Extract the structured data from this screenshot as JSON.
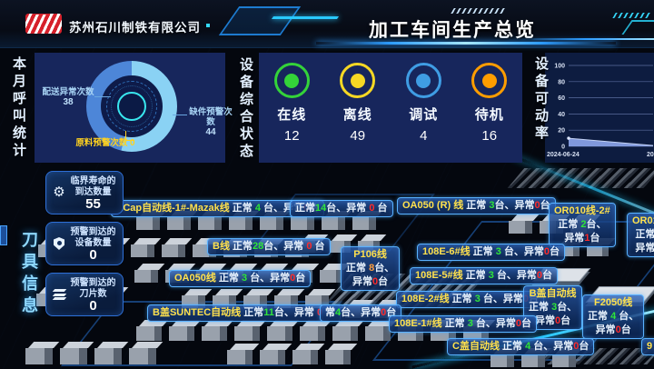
{
  "header": {
    "company": "苏州石川制铁有限公司",
    "title": "加工车间生产总览"
  },
  "left_panel": {
    "side_label": "本月呼叫统计",
    "callouts": [
      {
        "text": "配送异常次数",
        "value": "38"
      },
      {
        "text": "缺件预警次数",
        "value": "44"
      },
      {
        "text": "原料预警次数",
        "value": "0"
      }
    ]
  },
  "status_panel": {
    "side_label": "设备综合状态",
    "items": [
      {
        "label": "在线",
        "value": "12",
        "color": "#34d339"
      },
      {
        "label": "离线",
        "value": "49",
        "color": "#f6d824"
      },
      {
        "label": "调试",
        "value": "4",
        "color": "#3f9de4"
      },
      {
        "label": "待机",
        "value": "16",
        "color": "#ff9d00"
      }
    ]
  },
  "availability": {
    "side_label": "设备可动率"
  },
  "tool_info": {
    "side_label": "刀具信息",
    "cards": [
      {
        "icon": "gears-icon",
        "label_line1": "临界寿命的",
        "label_line2": "到达数量",
        "value": "55"
      },
      {
        "icon": "shield-icon",
        "label_line1": "预警到达的",
        "label_line2": "设备数量",
        "value": "0"
      },
      {
        "icon": "layers-icon",
        "label_line1": "预警到达的",
        "label_line2": "刀片数",
        "value": "0"
      }
    ]
  },
  "chart_data": [
    {
      "type": "pie",
      "title": "本月呼叫统计",
      "labels": [
        "配送异常次数",
        "缺件预警次数",
        "原料预警次数"
      ],
      "values": [
        38,
        44,
        0
      ],
      "colors": [
        "#4d86d8",
        "#8ad2f4",
        "#ffd21f"
      ],
      "legend_position": "callouts"
    },
    {
      "type": "area",
      "title": "设备可动率",
      "x_labels": [
        "2024-06-24",
        "20"
      ],
      "values": [
        10,
        1
      ],
      "ylim": [
        0,
        100
      ],
      "yticks": [
        0,
        20,
        40,
        60,
        80,
        100
      ],
      "grid": true,
      "fill_color": "#8aa3e8",
      "line_color": "#c3d2f5"
    }
  ],
  "floor": {
    "labels": [
      {
        "lines": [
          [
            [
              "XCap自动线-1#-Mazak线",
              "y"
            ],
            [
              " 正常 ",
              "w"
            ],
            [
              "4",
              "g"
            ],
            [
              " 台、异常",
              "w"
            ],
            [
              "0",
              "r"
            ],
            [
              "台",
              "w"
            ]
          ]
        ]
      },
      {
        "lines": [
          [
            [
              "正常",
              "w"
            ],
            [
              "14",
              "g"
            ],
            [
              "台、异常 ",
              "w"
            ],
            [
              "0",
              "r"
            ],
            [
              " 台",
              "w"
            ]
          ]
        ]
      },
      {
        "lines": [
          [
            [
              "OA050 (R) 线",
              "y"
            ],
            [
              " 正常 ",
              "w"
            ],
            [
              "3",
              "g"
            ],
            [
              "台、异常",
              "w"
            ],
            [
              "0",
              "r"
            ],
            [
              "台",
              "w"
            ]
          ]
        ]
      },
      {
        "lines": [
          [
            [
              "OR010线-2#",
              "y"
            ]
          ],
          [
            [
              "正常 ",
              "w"
            ],
            [
              "2",
              "g"
            ],
            [
              "台、",
              "w"
            ]
          ],
          [
            [
              "异常",
              "w"
            ],
            [
              "1",
              "r"
            ],
            [
              "台",
              "w"
            ]
          ]
        ]
      },
      {
        "lines": [
          [
            [
              "OR01",
              "y"
            ]
          ],
          [
            [
              "正常",
              "w"
            ]
          ],
          [
            [
              "异常",
              "w"
            ]
          ]
        ]
      },
      {
        "lines": [
          [
            [
              "B线",
              "y"
            ],
            [
              " 正常",
              "w"
            ],
            [
              "28",
              "g"
            ],
            [
              "台、异常 ",
              "w"
            ],
            [
              "0",
              "r"
            ],
            [
              " 台",
              "w"
            ]
          ]
        ]
      },
      {
        "lines": [
          [
            [
              "P106线",
              "y"
            ]
          ],
          [
            [
              "正常 ",
              "w"
            ],
            [
              "8",
              "o"
            ],
            [
              "台、",
              "w"
            ]
          ],
          [
            [
              "异常",
              "w"
            ],
            [
              "0",
              "r"
            ],
            [
              "台",
              "w"
            ]
          ]
        ]
      },
      {
        "lines": [
          [
            [
              "108E-6#线",
              "y"
            ],
            [
              " 正常 ",
              "w"
            ],
            [
              "3",
              "g"
            ],
            [
              " 台、异常",
              "w"
            ],
            [
              "0",
              "r"
            ],
            [
              "台",
              "w"
            ]
          ]
        ]
      },
      {
        "lines": [
          [
            [
              "108E-5#线",
              "y"
            ],
            [
              " 正常 ",
              "w"
            ],
            [
              "3",
              "g"
            ],
            [
              " 台、异常",
              "w"
            ],
            [
              "0",
              "r"
            ],
            [
              "台",
              "w"
            ]
          ]
        ]
      },
      {
        "lines": [
          [
            [
              "OA050线",
              "y"
            ],
            [
              " 正常 ",
              "w"
            ],
            [
              "3",
              "g"
            ],
            [
              " 台、异常",
              "w"
            ],
            [
              "0",
              "r"
            ],
            [
              "台",
              "w"
            ]
          ]
        ]
      },
      {
        "lines": [
          [
            [
              "108E-2#线",
              "y"
            ],
            [
              " 正常 ",
              "w"
            ],
            [
              "3",
              "g"
            ],
            [
              " 台、异常",
              "w"
            ],
            [
              "0",
              "r"
            ],
            [
              "台",
              "w"
            ]
          ]
        ]
      },
      {
        "lines": [
          [
            [
              "B盖自动线",
              "y"
            ]
          ],
          [
            [
              "正常 ",
              "w"
            ],
            [
              "3",
              "g"
            ],
            [
              "台、",
              "w"
            ]
          ],
          [
            [
              "异常",
              "w"
            ],
            [
              "0",
              "r"
            ],
            [
              "台",
              "w"
            ]
          ]
        ]
      },
      {
        "lines": [
          [
            [
              "F2050线",
              "y"
            ]
          ],
          [
            [
              "正常 ",
              "w"
            ],
            [
              "4",
              "g"
            ],
            [
              " 台、",
              "w"
            ]
          ],
          [
            [
              "异常",
              "w"
            ],
            [
              "0",
              "r"
            ],
            [
              "台",
              "w"
            ]
          ]
        ]
      },
      {
        "lines": [
          [
            [
              "B盖SUNTEC自动线",
              "y"
            ],
            [
              " 正常",
              "w"
            ],
            [
              "11",
              "g"
            ],
            [
              "台、异常 ",
              "w"
            ],
            [
              "0",
              "r"
            ],
            [
              " 台",
              "w"
            ]
          ]
        ]
      },
      {
        "lines": [
          [
            [
              "常",
              "w"
            ],
            [
              "4",
              "g"
            ],
            [
              "台、异常",
              "w"
            ],
            [
              "0",
              "r"
            ],
            [
              "台",
              "w"
            ]
          ]
        ]
      },
      {
        "lines": [
          [
            [
              "108E-1#线",
              "y"
            ],
            [
              " 正常 ",
              "w"
            ],
            [
              "3",
              "g"
            ],
            [
              " 台、异常",
              "w"
            ],
            [
              "0",
              "r"
            ],
            [
              "台",
              "w"
            ]
          ]
        ]
      },
      {
        "lines": [
          [
            [
              "C盖自动线",
              "y"
            ],
            [
              " 正常 ",
              "w"
            ],
            [
              "4",
              "g"
            ],
            [
              " 台、异常",
              "w"
            ],
            [
              "0",
              "r"
            ],
            [
              "台",
              "w"
            ]
          ]
        ]
      },
      {
        "lines": [
          [
            [
              "9",
              "y"
            ]
          ]
        ]
      }
    ]
  }
}
